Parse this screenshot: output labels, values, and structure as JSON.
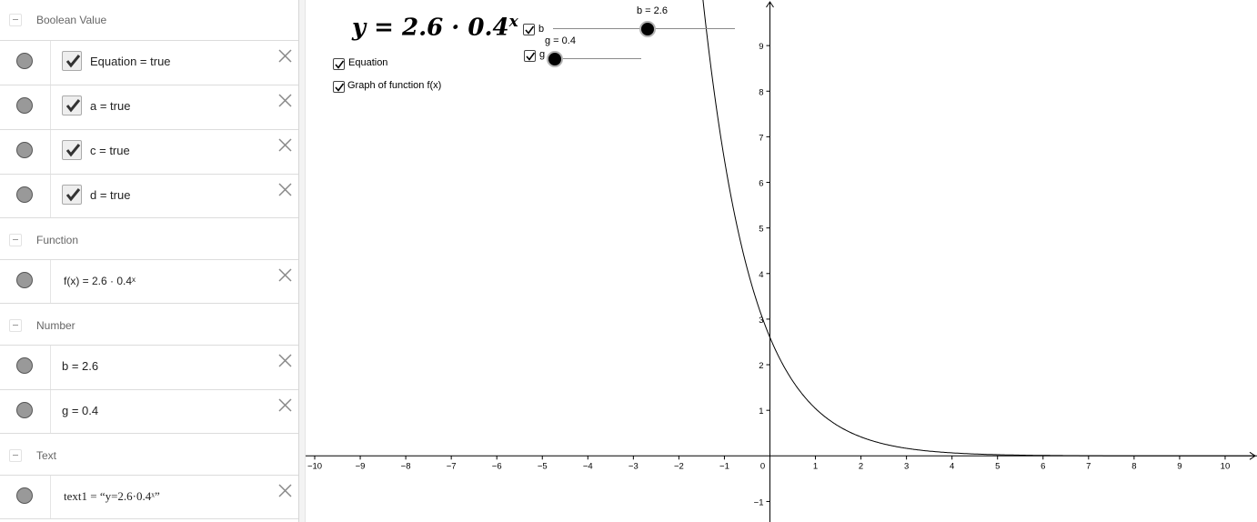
{
  "algebra": {
    "groups": [
      {
        "label": "Boolean Value",
        "items": [
          {
            "text": "Equation = true"
          },
          {
            "text": "a = true"
          },
          {
            "text": "c = true"
          },
          {
            "text": "d = true"
          }
        ]
      },
      {
        "label": "Function",
        "items": [
          {
            "text": "f(x)  =  2.6 · 0.4ˣ"
          }
        ]
      },
      {
        "label": "Number",
        "items": [
          {
            "text": "b = 2.6"
          },
          {
            "text": "g = 0.4"
          }
        ]
      },
      {
        "label": "Text",
        "items": [
          {
            "text": "text1 = “y=2.6·0.4ˣ”"
          }
        ]
      }
    ]
  },
  "graphics": {
    "equation_text": "y = 2.6 · 0.4",
    "equation_exponent": "x",
    "checkbox_equation_label": "Equation",
    "checkbox_graph_label": "Graph of function f(x)",
    "slider_b": {
      "label": "b",
      "value_text": "b = 2.6",
      "value": 2.6,
      "min": 0,
      "max": 5
    },
    "slider_g": {
      "label": "g",
      "value_text": "g = 0.4",
      "value": 0.4,
      "min": 0.4,
      "max": 2
    }
  },
  "chart_data": {
    "type": "line",
    "function": "f(x) = 2.6 * 0.4^x",
    "coefficient": 2.6,
    "base": 0.4,
    "x_ticks": [
      -10,
      -9,
      -8,
      -7,
      -6,
      -5,
      -4,
      -3,
      -2,
      -1,
      0,
      1,
      2,
      3,
      4,
      5,
      6,
      7,
      8,
      9,
      10
    ],
    "y_ticks": [
      -1,
      1,
      2,
      3,
      4,
      5,
      6,
      7,
      8,
      9
    ],
    "xlim": [
      -10.2,
      10.7
    ],
    "ylim": [
      -1.45,
      10
    ],
    "grid": false,
    "colors": {
      "curve": "#000000",
      "axis": "#000000"
    }
  }
}
